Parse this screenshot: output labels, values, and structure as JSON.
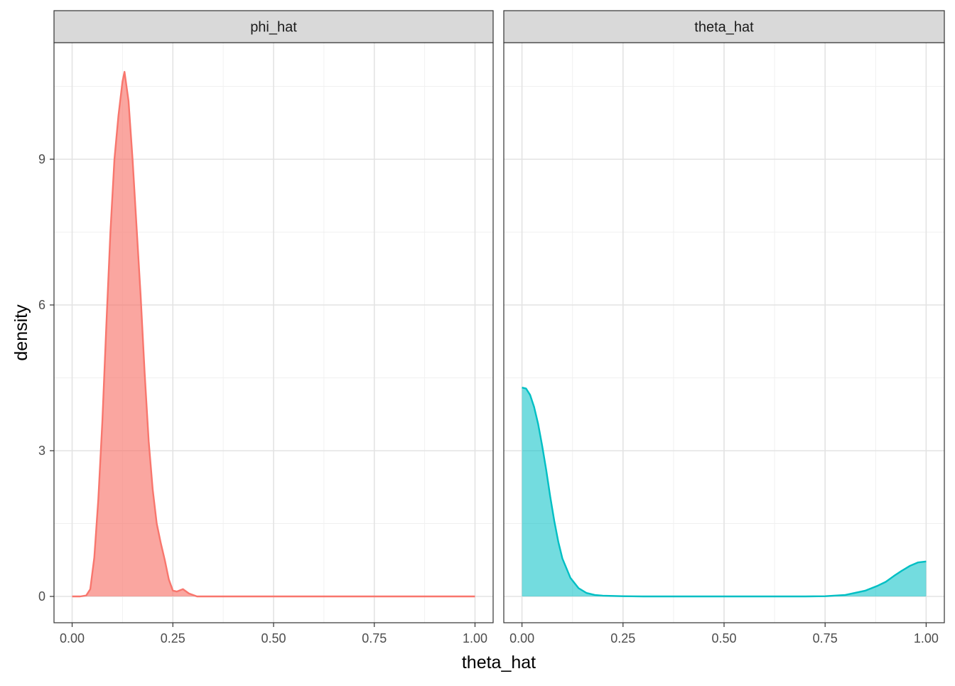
{
  "chart_data": {
    "type": "area",
    "chart_kind": "faceted density plot",
    "xlabel": "theta_hat",
    "ylabel": "density",
    "xlim": [
      0,
      1
    ],
    "ylim": [
      0,
      10.8
    ],
    "x_ticks": [
      0,
      0.25,
      0.5,
      0.75,
      1
    ],
    "x_tick_labels": [
      "0.00",
      "0.25",
      "0.50",
      "0.75",
      "1.00"
    ],
    "y_ticks": [
      0,
      3,
      6,
      9
    ],
    "y_tick_labels": [
      "0",
      "3",
      "6",
      "9"
    ],
    "grid": true,
    "legend": "none",
    "facets": [
      {
        "label": "phi_hat",
        "color": "#F8766D",
        "fill": "#F8766D",
        "fill_opacity": 0.65,
        "points": [
          [
            0.0,
            0.0
          ],
          [
            0.02,
            0.0
          ],
          [
            0.035,
            0.02
          ],
          [
            0.045,
            0.15
          ],
          [
            0.055,
            0.8
          ],
          [
            0.065,
            2.0
          ],
          [
            0.075,
            3.6
          ],
          [
            0.085,
            5.6
          ],
          [
            0.095,
            7.5
          ],
          [
            0.105,
            9.0
          ],
          [
            0.115,
            9.9
          ],
          [
            0.125,
            10.6
          ],
          [
            0.13,
            10.8
          ],
          [
            0.14,
            10.2
          ],
          [
            0.15,
            9.0
          ],
          [
            0.16,
            7.6
          ],
          [
            0.17,
            6.2
          ],
          [
            0.18,
            4.6
          ],
          [
            0.19,
            3.2
          ],
          [
            0.2,
            2.2
          ],
          [
            0.21,
            1.5
          ],
          [
            0.22,
            1.1
          ],
          [
            0.23,
            0.75
          ],
          [
            0.24,
            0.35
          ],
          [
            0.25,
            0.12
          ],
          [
            0.26,
            0.1
          ],
          [
            0.275,
            0.15
          ],
          [
            0.29,
            0.06
          ],
          [
            0.31,
            0.0
          ],
          [
            0.5,
            0.0
          ],
          [
            0.75,
            0.0
          ],
          [
            1.0,
            0.0
          ]
        ]
      },
      {
        "label": "theta_hat",
        "color": "#00BFC4",
        "fill": "#00BFC4",
        "fill_opacity": 0.55,
        "points": [
          [
            0.0,
            4.3
          ],
          [
            0.01,
            4.28
          ],
          [
            0.02,
            4.15
          ],
          [
            0.03,
            3.9
          ],
          [
            0.04,
            3.55
          ],
          [
            0.05,
            3.1
          ],
          [
            0.06,
            2.6
          ],
          [
            0.07,
            2.05
          ],
          [
            0.08,
            1.55
          ],
          [
            0.09,
            1.12
          ],
          [
            0.1,
            0.78
          ],
          [
            0.12,
            0.38
          ],
          [
            0.14,
            0.17
          ],
          [
            0.16,
            0.07
          ],
          [
            0.18,
            0.03
          ],
          [
            0.2,
            0.015
          ],
          [
            0.25,
            0.005
          ],
          [
            0.3,
            0.0
          ],
          [
            0.5,
            0.0
          ],
          [
            0.7,
            0.0
          ],
          [
            0.75,
            0.005
          ],
          [
            0.8,
            0.03
          ],
          [
            0.85,
            0.12
          ],
          [
            0.88,
            0.22
          ],
          [
            0.9,
            0.3
          ],
          [
            0.92,
            0.42
          ],
          [
            0.94,
            0.53
          ],
          [
            0.96,
            0.63
          ],
          [
            0.98,
            0.7
          ],
          [
            1.0,
            0.72
          ]
        ]
      }
    ]
  }
}
